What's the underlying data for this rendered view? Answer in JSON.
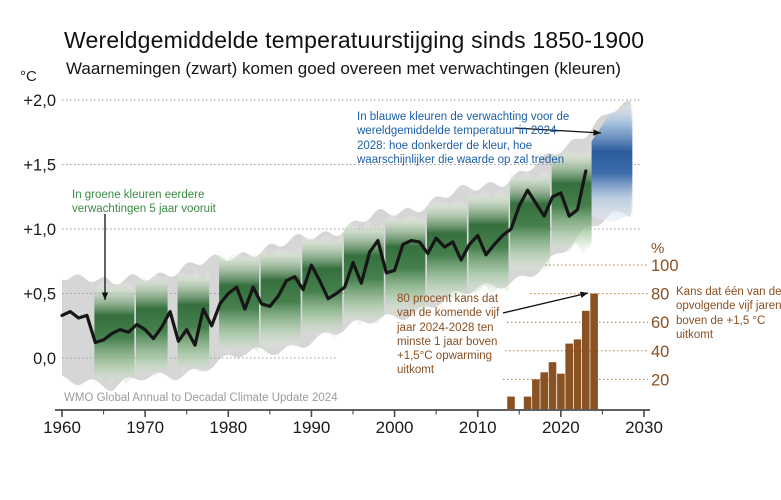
{
  "title": "Wereldgemiddelde temperatuurstijging sinds 1850-1900",
  "subtitle": "Waarnemingen (zwart) komen goed overeen met verwachtingen (kleuren)",
  "source": "WMO Global Annual to Decadal Climate Update 2024",
  "axes": {
    "y_left_unit": "°C",
    "y_right_unit": "%",
    "y_left_ticks": [
      "+2,0",
      "+1,5",
      "+1,0",
      "+0,5",
      "0,0"
    ],
    "y_left_tick_values": [
      2.0,
      1.5,
      1.0,
      0.5,
      0.0
    ],
    "y_right_ticks": [
      "100",
      "80",
      "60",
      "40",
      "20"
    ],
    "y_right_tick_values": [
      100,
      80,
      60,
      40,
      20
    ],
    "x_ticks": [
      "1960",
      "1970",
      "1980",
      "1990",
      "2000",
      "2010",
      "2020",
      "2030"
    ],
    "x_tick_values": [
      1960,
      1970,
      1980,
      1990,
      2000,
      2010,
      2020,
      2030
    ]
  },
  "annotations": {
    "blue": "In blauwe kleuren de verwachting voor de wereldgemiddelde temperatuur in 2024-2028: hoe donkerder de kleur, hoe waarschijnlijker die waarde op zal treden",
    "green": "In groene kleuren eerdere verwachtingen 5 jaar vooruit",
    "brown": "80 procent kans dat van de komende vijf jaar 2024-2028 ten minste 1 jaar boven +1,5°C opwarming uitkomt",
    "right": "Kans dat één van de opvolgende vijf jaren boven de +1,5 °C uitkomt"
  },
  "colors": {
    "observations_black": "#161616",
    "hindcast_green": "#2f6b37",
    "forecast_blue": "#2d5c9e",
    "envelope_gray": "#d6d6d6",
    "bars_brown": "#8a5222",
    "grid_gray": "#9a9a9a",
    "grid_brown": "#b5763a",
    "axis_gray": "#4a4a4a",
    "note_blue": "#1d5fa7",
    "note_green": "#3c8a45",
    "note_brown": "#8a4f21",
    "source_gray": "#9b9b9b"
  },
  "chart_data": {
    "type": "combo",
    "x_range": [
      1960,
      2030
    ],
    "y_left": {
      "unit": "°C",
      "min": 0.0,
      "max": 2.0,
      "gridlines": [
        0.0,
        0.5,
        1.0,
        1.5,
        2.0
      ]
    },
    "y_right": {
      "unit": "%",
      "min": 0,
      "max": 100,
      "gridlines": [
        20,
        40,
        60,
        80,
        100
      ]
    },
    "observations": {
      "name": "Waarnemingen",
      "type": "line",
      "start_year": 1960,
      "values": [
        0.33,
        0.36,
        0.31,
        0.33,
        0.12,
        0.14,
        0.19,
        0.22,
        0.2,
        0.26,
        0.22,
        0.15,
        0.24,
        0.36,
        0.13,
        0.22,
        0.1,
        0.38,
        0.25,
        0.42,
        0.5,
        0.55,
        0.38,
        0.55,
        0.42,
        0.4,
        0.48,
        0.6,
        0.63,
        0.53,
        0.72,
        0.6,
        0.46,
        0.5,
        0.55,
        0.74,
        0.58,
        0.82,
        0.91,
        0.66,
        0.68,
        0.88,
        0.91,
        0.9,
        0.81,
        0.93,
        0.86,
        0.9,
        0.76,
        0.88,
        0.95,
        0.8,
        0.88,
        0.95,
        1.0,
        1.18,
        1.3,
        1.2,
        1.1,
        1.25,
        1.28,
        1.1,
        1.15,
        1.45
      ]
    },
    "hindcasts": {
      "name": "Eerdere verwachtingen (5 jaar vooruit)",
      "type": "gradient-bands",
      "half_range": 0.37,
      "bands": [
        {
          "start": 1964,
          "end": 1968,
          "center": 0.2
        },
        {
          "start": 1969,
          "end": 1972,
          "center": 0.25
        },
        {
          "start": 1974,
          "end": 1977,
          "center": 0.28
        },
        {
          "start": 1979,
          "end": 1983,
          "center": 0.43
        },
        {
          "start": 1984,
          "end": 1988,
          "center": 0.46
        },
        {
          "start": 1989,
          "end": 1993,
          "center": 0.56
        },
        {
          "start": 1994,
          "end": 1998,
          "center": 0.66
        },
        {
          "start": 1999,
          "end": 2003,
          "center": 0.72
        },
        {
          "start": 2004,
          "end": 2008,
          "center": 0.84
        },
        {
          "start": 2009,
          "end": 2013,
          "center": 0.9
        },
        {
          "start": 2014,
          "end": 2018,
          "center": 1.05
        },
        {
          "start": 2019,
          "end": 2023,
          "center": 1.22
        }
      ]
    },
    "forecast": {
      "name": "Verwachting 2024-2028",
      "type": "gradient-band",
      "start": 2023.7,
      "end": 2028.6,
      "t_low_start": 1.1,
      "t_high_start": 1.68,
      "t_low_end": 1.12,
      "t_high_end": 1.97
    },
    "envelope": {
      "name": "Onzekerheidsband",
      "half_range": 0.4,
      "trend": [
        [
          1960,
          0.25
        ],
        [
          1963,
          0.24
        ],
        [
          1966,
          0.16
        ],
        [
          1970,
          0.24
        ],
        [
          1974,
          0.28
        ],
        [
          1978,
          0.35
        ],
        [
          1982,
          0.42
        ],
        [
          1986,
          0.46
        ],
        [
          1990,
          0.55
        ],
        [
          1994,
          0.61
        ],
        [
          1998,
          0.7
        ],
        [
          2002,
          0.76
        ],
        [
          2006,
          0.85
        ],
        [
          2010,
          0.92
        ],
        [
          2014,
          1.0
        ],
        [
          2018,
          1.12
        ],
        [
          2021,
          1.25
        ],
        [
          2024,
          1.42
        ],
        [
          2026,
          1.52
        ],
        [
          2028.8,
          1.55
        ]
      ]
    },
    "probabilities": {
      "name": "Kans dat één van de opvolgende vijf jaren boven de +1,5 °C uitkomt",
      "type": "bar",
      "unit": "%",
      "years": [
        2014,
        2016,
        2017,
        2018,
        2019,
        2020,
        2021,
        2022,
        2023,
        2024
      ],
      "values": [
        8,
        8,
        20,
        25,
        32,
        24,
        45,
        48,
        68,
        80
      ]
    }
  }
}
